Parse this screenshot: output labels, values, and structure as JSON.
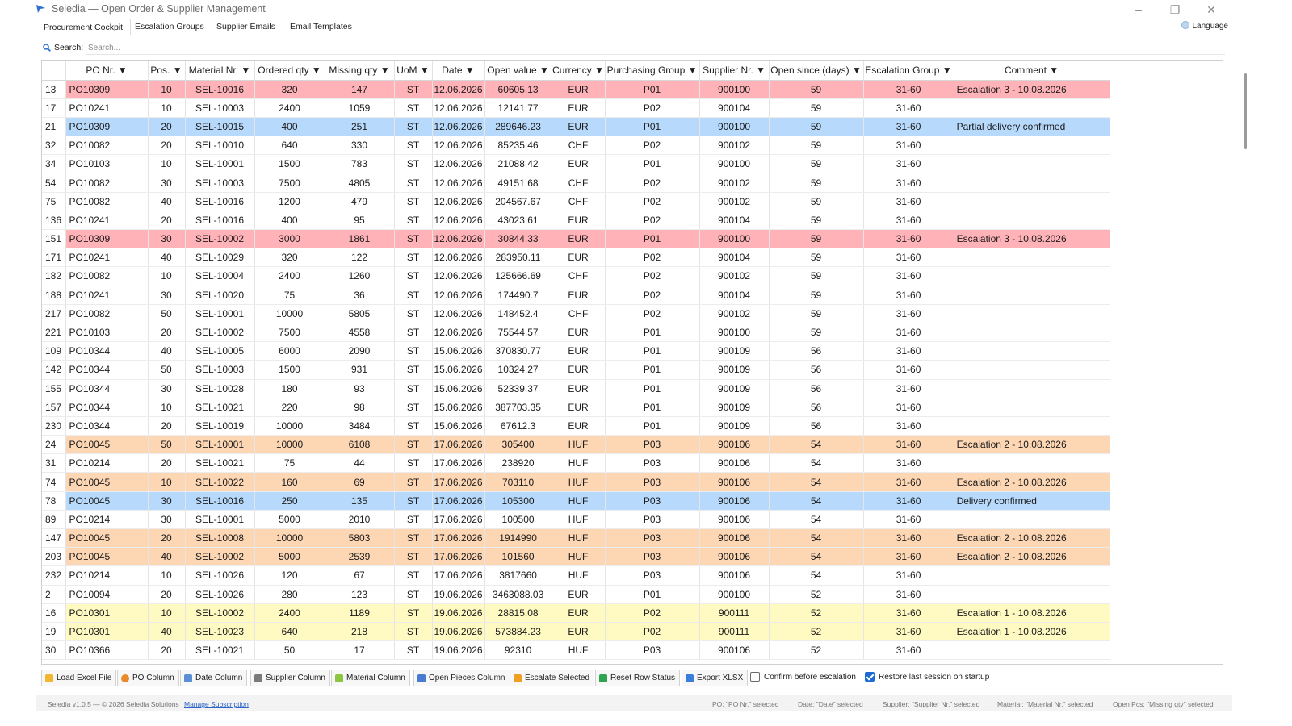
{
  "window": {
    "title": "Seledia — Open Order & Supplier Management",
    "controls": [
      "minimize",
      "maximize",
      "close"
    ]
  },
  "tabs": [
    {
      "label": "Procurement Cockpit",
      "active": true
    },
    {
      "label": "Escalation Groups",
      "active": false
    },
    {
      "label": "Supplier Emails",
      "active": false
    },
    {
      "label": "Email Templates",
      "active": false
    }
  ],
  "language": {
    "label": "Language",
    "icon": "globe-icon"
  },
  "search": {
    "label": "Search:",
    "placeholder": "Search...",
    "value": ""
  },
  "table": {
    "columns": [
      "PO Nr. ▼",
      "Pos. ▼",
      "Material Nr. ▼",
      "Ordered qty ▼",
      "Missing qty ▼",
      "UoM ▼",
      "Date ▼",
      "Open value ▼",
      "Currency ▼",
      "Purchasing Group ▼",
      "Supplier Nr. ▼",
      "Open since (days) ▼",
      "Escalation Group ▼",
      "Comment ▼"
    ],
    "rows": [
      {
        "id": "13",
        "cells": [
          "PO10309",
          "10",
          "SEL-10016",
          "320",
          "147",
          "ST",
          "12.06.2026",
          "60605.13",
          "EUR",
          "P01",
          "900100",
          "59",
          "31-60",
          "Escalation 3 - 10.08.2026"
        ],
        "status": "red"
      },
      {
        "id": "17",
        "cells": [
          "PO10241",
          "10",
          "SEL-10003",
          "2400",
          "1059",
          "ST",
          "12.06.2026",
          "12141.77",
          "EUR",
          "P02",
          "900104",
          "59",
          "31-60",
          ""
        ],
        "status": "none"
      },
      {
        "id": "21",
        "cells": [
          "PO10309",
          "20",
          "SEL-10015",
          "400",
          "251",
          "ST",
          "12.06.2026",
          "289646.23",
          "EUR",
          "P01",
          "900100",
          "59",
          "31-60",
          "Partial delivery confirmed"
        ],
        "status": "blue"
      },
      {
        "id": "32",
        "cells": [
          "PO10082",
          "20",
          "SEL-10010",
          "640",
          "330",
          "ST",
          "12.06.2026",
          "85235.46",
          "CHF",
          "P02",
          "900102",
          "59",
          "31-60",
          ""
        ],
        "status": "none"
      },
      {
        "id": "34",
        "cells": [
          "PO10103",
          "10",
          "SEL-10001",
          "1500",
          "783",
          "ST",
          "12.06.2026",
          "21088.42",
          "EUR",
          "P01",
          "900100",
          "59",
          "31-60",
          ""
        ],
        "status": "none"
      },
      {
        "id": "54",
        "cells": [
          "PO10082",
          "30",
          "SEL-10003",
          "7500",
          "4805",
          "ST",
          "12.06.2026",
          "49151.68",
          "CHF",
          "P02",
          "900102",
          "59",
          "31-60",
          ""
        ],
        "status": "none"
      },
      {
        "id": "75",
        "cells": [
          "PO10082",
          "40",
          "SEL-10016",
          "1200",
          "479",
          "ST",
          "12.06.2026",
          "204567.67",
          "CHF",
          "P02",
          "900102",
          "59",
          "31-60",
          ""
        ],
        "status": "none"
      },
      {
        "id": "136",
        "cells": [
          "PO10241",
          "20",
          "SEL-10016",
          "400",
          "95",
          "ST",
          "12.06.2026",
          "43023.61",
          "EUR",
          "P02",
          "900104",
          "59",
          "31-60",
          ""
        ],
        "status": "none"
      },
      {
        "id": "151",
        "cells": [
          "PO10309",
          "30",
          "SEL-10002",
          "3000",
          "1861",
          "ST",
          "12.06.2026",
          "30844.33",
          "EUR",
          "P01",
          "900100",
          "59",
          "31-60",
          "Escalation 3 - 10.08.2026"
        ],
        "status": "red"
      },
      {
        "id": "171",
        "cells": [
          "PO10241",
          "40",
          "SEL-10029",
          "320",
          "122",
          "ST",
          "12.06.2026",
          "283950.11",
          "EUR",
          "P02",
          "900104",
          "59",
          "31-60",
          ""
        ],
        "status": "none"
      },
      {
        "id": "182",
        "cells": [
          "PO10082",
          "10",
          "SEL-10004",
          "2400",
          "1260",
          "ST",
          "12.06.2026",
          "125666.69",
          "CHF",
          "P02",
          "900102",
          "59",
          "31-60",
          ""
        ],
        "status": "none"
      },
      {
        "id": "188",
        "cells": [
          "PO10241",
          "30",
          "SEL-10020",
          "75",
          "36",
          "ST",
          "12.06.2026",
          "174490.7",
          "EUR",
          "P02",
          "900104",
          "59",
          "31-60",
          ""
        ],
        "status": "none"
      },
      {
        "id": "217",
        "cells": [
          "PO10082",
          "50",
          "SEL-10001",
          "10000",
          "5805",
          "ST",
          "12.06.2026",
          "148452.4",
          "CHF",
          "P02",
          "900102",
          "59",
          "31-60",
          ""
        ],
        "status": "none"
      },
      {
        "id": "221",
        "cells": [
          "PO10103",
          "20",
          "SEL-10002",
          "7500",
          "4558",
          "ST",
          "12.06.2026",
          "75544.57",
          "EUR",
          "P01",
          "900100",
          "59",
          "31-60",
          ""
        ],
        "status": "none"
      },
      {
        "id": "109",
        "cells": [
          "PO10344",
          "40",
          "SEL-10005",
          "6000",
          "2090",
          "ST",
          "15.06.2026",
          "370830.77",
          "EUR",
          "P01",
          "900109",
          "56",
          "31-60",
          ""
        ],
        "status": "none"
      },
      {
        "id": "142",
        "cells": [
          "PO10344",
          "50",
          "SEL-10003",
          "1500",
          "931",
          "ST",
          "15.06.2026",
          "10324.27",
          "EUR",
          "P01",
          "900109",
          "56",
          "31-60",
          ""
        ],
        "status": "none"
      },
      {
        "id": "155",
        "cells": [
          "PO10344",
          "30",
          "SEL-10028",
          "180",
          "93",
          "ST",
          "15.06.2026",
          "52339.37",
          "EUR",
          "P01",
          "900109",
          "56",
          "31-60",
          ""
        ],
        "status": "none"
      },
      {
        "id": "157",
        "cells": [
          "PO10344",
          "10",
          "SEL-10021",
          "220",
          "98",
          "ST",
          "15.06.2026",
          "387703.35",
          "EUR",
          "P01",
          "900109",
          "56",
          "31-60",
          ""
        ],
        "status": "none"
      },
      {
        "id": "230",
        "cells": [
          "PO10344",
          "20",
          "SEL-10019",
          "10000",
          "3484",
          "ST",
          "15.06.2026",
          "67612.3",
          "EUR",
          "P01",
          "900109",
          "56",
          "31-60",
          ""
        ],
        "status": "none"
      },
      {
        "id": "24",
        "cells": [
          "PO10045",
          "50",
          "SEL-10001",
          "10000",
          "6108",
          "ST",
          "17.06.2026",
          "305400",
          "HUF",
          "P03",
          "900106",
          "54",
          "31-60",
          "Escalation 2 - 10.08.2026"
        ],
        "status": "orange"
      },
      {
        "id": "31",
        "cells": [
          "PO10214",
          "20",
          "SEL-10021",
          "75",
          "44",
          "ST",
          "17.06.2026",
          "238920",
          "HUF",
          "P03",
          "900106",
          "54",
          "31-60",
          ""
        ],
        "status": "none"
      },
      {
        "id": "74",
        "cells": [
          "PO10045",
          "10",
          "SEL-10022",
          "160",
          "69",
          "ST",
          "17.06.2026",
          "703110",
          "HUF",
          "P03",
          "900106",
          "54",
          "31-60",
          "Escalation 2 - 10.08.2026"
        ],
        "status": "orange"
      },
      {
        "id": "78",
        "cells": [
          "PO10045",
          "30",
          "SEL-10016",
          "250",
          "135",
          "ST",
          "17.06.2026",
          "105300",
          "HUF",
          "P03",
          "900106",
          "54",
          "31-60",
          "Delivery confirmed"
        ],
        "status": "blue"
      },
      {
        "id": "89",
        "cells": [
          "PO10214",
          "30",
          "SEL-10001",
          "5000",
          "2010",
          "ST",
          "17.06.2026",
          "100500",
          "HUF",
          "P03",
          "900106",
          "54",
          "31-60",
          ""
        ],
        "status": "none"
      },
      {
        "id": "147",
        "cells": [
          "PO10045",
          "20",
          "SEL-10008",
          "10000",
          "5803",
          "ST",
          "17.06.2026",
          "1914990",
          "HUF",
          "P03",
          "900106",
          "54",
          "31-60",
          "Escalation 2 - 10.08.2026"
        ],
        "status": "orange"
      },
      {
        "id": "203",
        "cells": [
          "PO10045",
          "40",
          "SEL-10002",
          "5000",
          "2539",
          "ST",
          "17.06.2026",
          "101560",
          "HUF",
          "P03",
          "900106",
          "54",
          "31-60",
          "Escalation 2 - 10.08.2026"
        ],
        "status": "orange"
      },
      {
        "id": "232",
        "cells": [
          "PO10214",
          "10",
          "SEL-10026",
          "120",
          "67",
          "ST",
          "17.06.2026",
          "3817660",
          "HUF",
          "P03",
          "900106",
          "54",
          "31-60",
          ""
        ],
        "status": "none"
      },
      {
        "id": "2",
        "cells": [
          "PO10094",
          "20",
          "SEL-10026",
          "280",
          "123",
          "ST",
          "19.06.2026",
          "3463088.03",
          "EUR",
          "P01",
          "900100",
          "52",
          "31-60",
          ""
        ],
        "status": "none"
      },
      {
        "id": "16",
        "cells": [
          "PO10301",
          "10",
          "SEL-10002",
          "2400",
          "1189",
          "ST",
          "19.06.2026",
          "28815.08",
          "EUR",
          "P02",
          "900111",
          "52",
          "31-60",
          "Escalation 1 - 10.08.2026"
        ],
        "status": "yellow"
      },
      {
        "id": "19",
        "cells": [
          "PO10301",
          "40",
          "SEL-10023",
          "640",
          "218",
          "ST",
          "19.06.2026",
          "573884.23",
          "EUR",
          "P02",
          "900111",
          "52",
          "31-60",
          "Escalation 1 - 10.08.2026"
        ],
        "status": "yellow"
      },
      {
        "id": "30",
        "cells": [
          "PO10366",
          "20",
          "SEL-10021",
          "50",
          "17",
          "ST",
          "19.06.2026",
          "92310",
          "HUF",
          "P03",
          "900106",
          "52",
          "31-60",
          ""
        ],
        "status": "none"
      }
    ]
  },
  "row_colors": {
    "red": "#ffb3b8",
    "blue": "#b7d9fb",
    "orange": "#fdd6b4",
    "yellow": "#fff9c2"
  },
  "toolbar": {
    "buttons": [
      {
        "label": "Load Excel File",
        "icon": "folder-icon",
        "color": "#f2b630"
      },
      {
        "label": "PO Column",
        "icon": "po-column-icon",
        "color": "#e8892a"
      },
      {
        "label": "Date Column",
        "icon": "calendar-icon",
        "color": "#5a8fd6"
      },
      {
        "label": "Supplier Column",
        "icon": "supplier-icon",
        "color": "#7a7a7a"
      },
      {
        "label": "Material Column",
        "icon": "material-icon",
        "color": "#8cc63f"
      },
      {
        "label": "Open Pieces Column",
        "icon": "chart-icon",
        "color": "#4a7bd0"
      },
      {
        "label": "Escalate Selected",
        "icon": "warning-icon",
        "color": "#f0a020"
      },
      {
        "label": "Reset Row Status",
        "icon": "recycle-icon",
        "color": "#2ea44f"
      },
      {
        "label": "Export XLSX",
        "icon": "export-icon",
        "color": "#3b7ddd"
      }
    ],
    "confirm_escalation": {
      "label": "Confirm before escalation",
      "checked": false
    },
    "restore_session": {
      "label": "Restore last session on startup",
      "checked": true
    }
  },
  "status": {
    "version": "Seledia v1.0.5 — © 2026 Seledia Solutions",
    "manage_link": "Manage Subscription",
    "po": "PO: \"PO Nr.\" selected",
    "date": "Date: \"Date\" selected",
    "supplier": "Supplier: \"Supplier Nr.\" selected",
    "material": "Material: \"Material Nr.\" selected",
    "open_pcs": "Open Pcs: \"Missing qty\" selected"
  }
}
